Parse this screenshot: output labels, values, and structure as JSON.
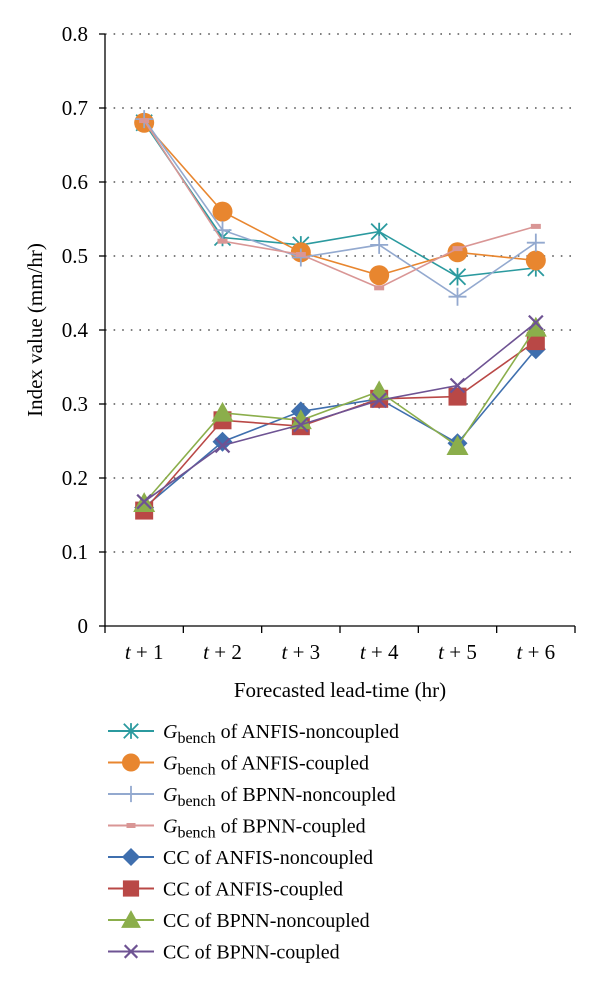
{
  "chart_data": {
    "type": "line",
    "xlabel": "Forecasted lead-time (hr)",
    "ylabel": "Index value (mm/hr)",
    "ylim": [
      0,
      0.8
    ],
    "yticks": [
      "0",
      "0.1",
      "0.2",
      "0.3",
      "0.4",
      "0.5",
      "0.6",
      "0.7",
      "0.8"
    ],
    "grid": true,
    "legend_position": "bottom",
    "categories": [
      "t + 1",
      "t + 2",
      "t + 3",
      "t + 4",
      "t + 5",
      "t + 6"
    ],
    "series": [
      {
        "name": "Gbench of ANFIS-noncoupled",
        "label_main": "G",
        "label_sub": "bench",
        "label_rest": " of ANFIS-noncoupled",
        "color": "#2b9a9f",
        "marker": "asterisk",
        "values": [
          0.68,
          0.525,
          0.515,
          0.533,
          0.472,
          0.484
        ]
      },
      {
        "name": "Gbench of ANFIS-coupled",
        "label_main": "G",
        "label_sub": "bench",
        "label_rest": " of ANFIS-coupled",
        "color": "#e8862f",
        "marker": "circle",
        "values": [
          0.68,
          0.56,
          0.505,
          0.474,
          0.505,
          0.494
        ]
      },
      {
        "name": "Gbench of BPNN-noncoupled",
        "label_main": "G",
        "label_sub": "bench",
        "label_rest": " of BPNN-noncoupled",
        "color": "#93a9cf",
        "marker": "plus",
        "values": [
          0.685,
          0.535,
          0.498,
          0.515,
          0.445,
          0.518
        ]
      },
      {
        "name": "Gbench of BPNN-coupled",
        "label_main": "G",
        "label_sub": "bench",
        "label_rest": " of BPNN-coupled",
        "color": "#d99695",
        "marker": "dash",
        "values": [
          0.683,
          0.52,
          0.502,
          0.457,
          0.51,
          0.54
        ]
      },
      {
        "name": "CC of ANFIS-noncoupled",
        "label_main": "CC of ANFIS-noncoupled",
        "label_sub": "",
        "label_rest": "",
        "color": "#3f6fae",
        "marker": "diamond",
        "values": [
          0.16,
          0.249,
          0.29,
          0.307,
          0.247,
          0.374
        ]
      },
      {
        "name": "CC of ANFIS-coupled",
        "label_main": "CC of ANFIS-coupled",
        "label_sub": "",
        "label_rest": "",
        "color": "#b94846",
        "marker": "square",
        "values": [
          0.156,
          0.278,
          0.27,
          0.307,
          0.31,
          0.385
        ]
      },
      {
        "name": "CC of BPNN-noncoupled",
        "label_main": "CC of BPNN-noncoupled",
        "label_sub": "",
        "label_rest": "",
        "color": "#8bae4b",
        "marker": "triangle",
        "values": [
          0.166,
          0.288,
          0.278,
          0.317,
          0.243,
          0.403
        ]
      },
      {
        "name": "CC of BPNN-coupled",
        "label_main": "CC of BPNN-coupled",
        "label_sub": "",
        "label_rest": "",
        "color": "#6e5393",
        "marker": "x",
        "values": [
          0.168,
          0.244,
          0.272,
          0.305,
          0.325,
          0.41
        ]
      }
    ]
  }
}
